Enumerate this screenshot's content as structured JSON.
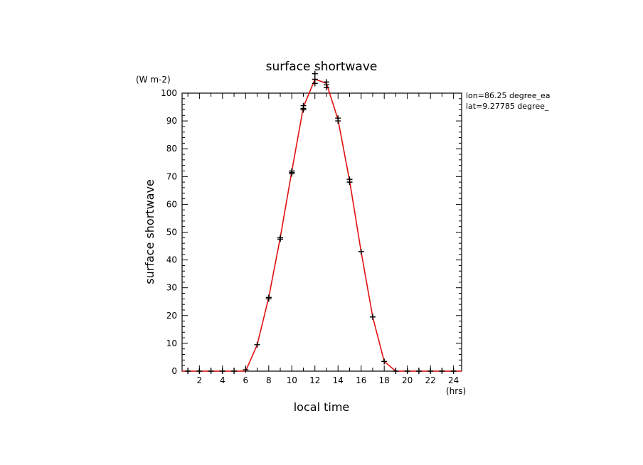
{
  "chart_data": {
    "type": "line",
    "title": "surface shortwave",
    "xlabel": "local time",
    "ylabel": "surface shortwave",
    "x_units": "(hrs)",
    "y_units": "(W m-2)",
    "xlim": [
      0.5,
      24.7
    ],
    "ylim": [
      0,
      100
    ],
    "x_ticks": [
      2,
      4,
      6,
      8,
      10,
      12,
      14,
      16,
      18,
      20,
      22,
      24
    ],
    "y_ticks": [
      0,
      10,
      20,
      30,
      40,
      50,
      60,
      70,
      80,
      90,
      100
    ],
    "annotations": [
      "lon=86.25 degree_ea",
      "lat=9.27785 degree_"
    ],
    "grid": false,
    "colors": {
      "line": "#e01010",
      "markers": "#000000"
    },
    "series": [
      {
        "style": "line",
        "x": [
          0.5,
          1,
          2,
          3,
          4,
          5,
          6,
          7,
          8,
          9,
          10,
          11,
          12,
          13,
          14,
          15,
          16,
          17,
          18,
          19,
          20,
          21,
          22,
          23,
          24,
          24.7
        ],
        "values": [
          0,
          0,
          0,
          0,
          0,
          0,
          0,
          9.5,
          26.5,
          48,
          72,
          95,
          105,
          103.5,
          90.5,
          68.5,
          43,
          19.5,
          3.5,
          0,
          0,
          0,
          0,
          0,
          0,
          0
        ]
      },
      {
        "style": "markers",
        "x": [
          1,
          2,
          3,
          4,
          5,
          6,
          7,
          8,
          8,
          9,
          9,
          10,
          10,
          10,
          11,
          11,
          11,
          12,
          12,
          12,
          13,
          13,
          13,
          14,
          14,
          15,
          15,
          16,
          17,
          18,
          19,
          20,
          21,
          22,
          23,
          24
        ],
        "values": [
          0,
          0,
          0,
          0,
          0,
          0.5,
          9.5,
          26.5,
          26,
          48,
          47.5,
          72,
          71.5,
          71,
          95.5,
          94.5,
          94,
          107,
          105,
          103.5,
          104,
          103,
          102,
          91,
          90,
          69,
          68,
          43,
          19.5,
          3.5,
          0,
          0,
          0,
          0,
          0,
          0
        ]
      }
    ]
  }
}
